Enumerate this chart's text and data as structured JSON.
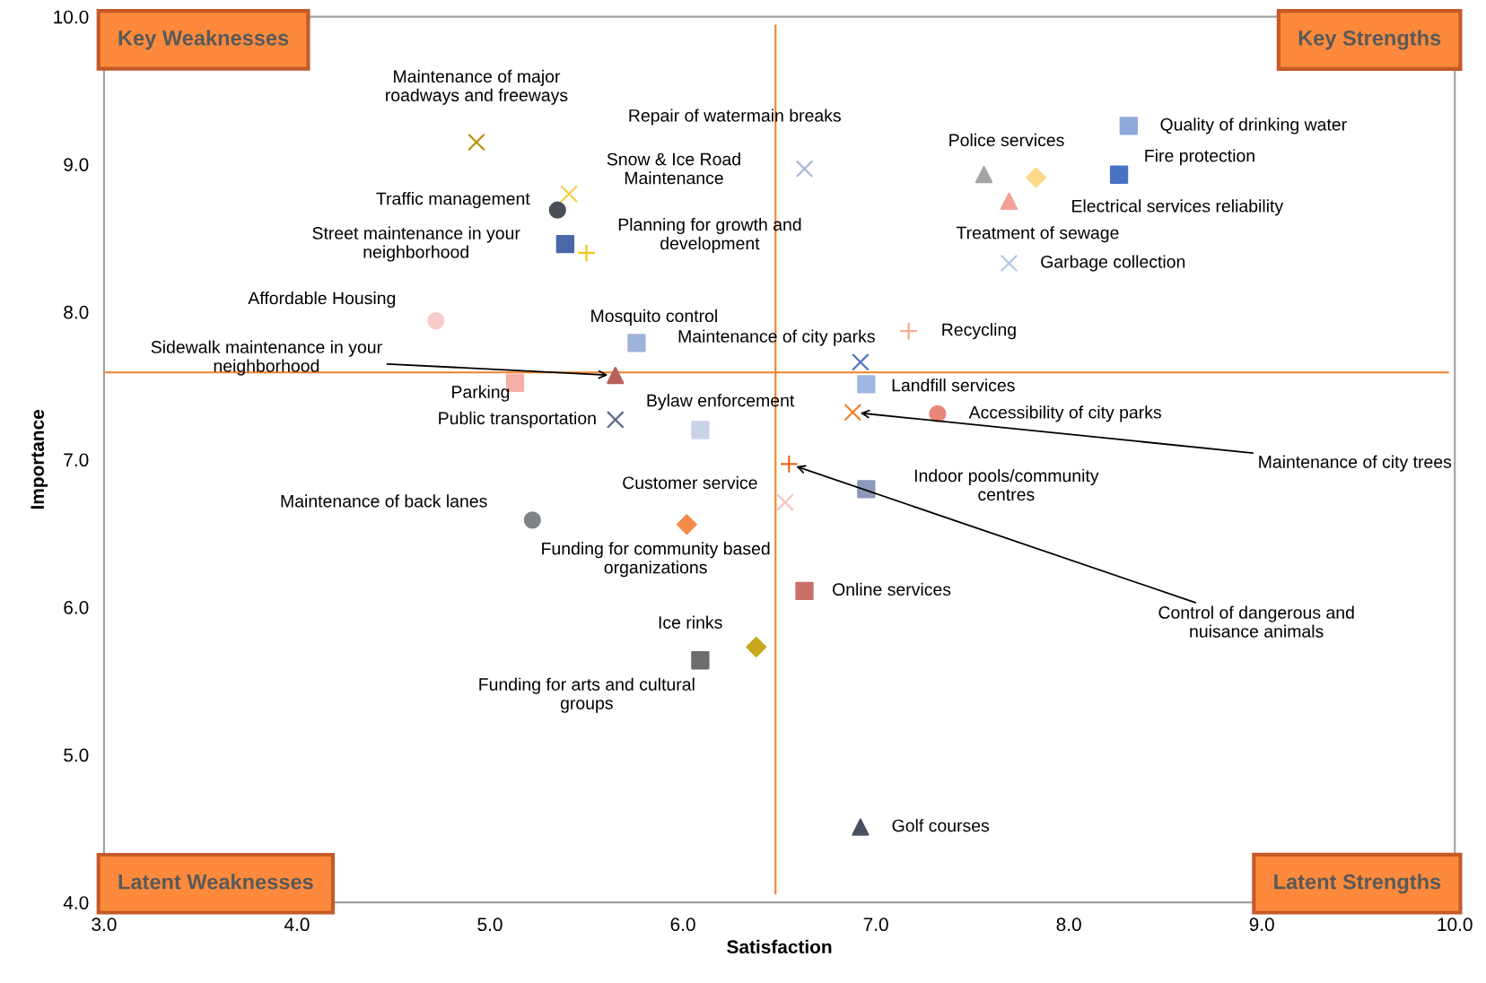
{
  "chart_data": {
    "type": "scatter",
    "xlabel": "Satisfaction",
    "ylabel": "Importance",
    "xlim": [
      3,
      10
    ],
    "ylim": [
      4,
      10
    ],
    "xticks": [
      {
        "value": 3,
        "label": "3.0"
      },
      {
        "value": 4,
        "label": "4.0"
      },
      {
        "value": 5,
        "label": "5.0"
      },
      {
        "value": 6,
        "label": "6.0"
      },
      {
        "value": 7,
        "label": "7.0"
      },
      {
        "value": 8,
        "label": "8.0"
      },
      {
        "value": 9,
        "label": "9.0"
      },
      {
        "value": 10,
        "label": "10.0"
      }
    ],
    "yticks": [
      {
        "value": 4,
        "label": "4.0"
      },
      {
        "value": 5,
        "label": "5.0"
      },
      {
        "value": 6,
        "label": "6.0"
      },
      {
        "value": 7,
        "label": "7.0"
      },
      {
        "value": 8,
        "label": "8.0"
      },
      {
        "value": 9,
        "label": "9.0"
      },
      {
        "value": 10,
        "label": "10.0"
      }
    ],
    "grid": false,
    "legend": false,
    "ref_lines": [
      {
        "axis": "x",
        "value": 6.48,
        "color": "#f07f2a"
      },
      {
        "axis": "y",
        "value": 7.59,
        "color": "#f07f2a"
      }
    ],
    "annotations": [
      "Key Weaknesses",
      "Key Strengths",
      "Latent Weaknesses",
      "Latent Strengths"
    ],
    "series": [
      {
        "name": "Maintenance of major\nroadways and freeways",
        "color": "#b8900a",
        "marker": "cross",
        "x": [
          4.93
        ],
        "values": [
          9.15
        ]
      },
      {
        "name": "Repair of watermain breaks",
        "color": "#a9b9d6",
        "marker": "cross",
        "x": [
          6.63
        ],
        "values": [
          8.97
        ]
      },
      {
        "name": "Snow & Ice Road\nMaintenance",
        "color": "#f5d04a",
        "marker": "cross",
        "x": [
          5.41
        ],
        "values": [
          8.8
        ]
      },
      {
        "name": "Traffic management",
        "color": "#4a4f57",
        "marker": "circle",
        "x": [
          5.35
        ],
        "values": [
          8.69
        ]
      },
      {
        "name": "Street maintenance in your\nneighborhood",
        "color": "#4a68a8",
        "marker": "square",
        "x": [
          5.39
        ],
        "values": [
          8.46
        ]
      },
      {
        "name": "Planning for growth and\ndevelopment",
        "color": "#f5c518",
        "marker": "plus",
        "x": [
          5.5
        ],
        "values": [
          8.4
        ]
      },
      {
        "name": "Quality of drinking water",
        "color": "#8ea9db",
        "marker": "square",
        "x": [
          8.31
        ],
        "values": [
          9.26
        ]
      },
      {
        "name": "Police services",
        "color": "#a5a5a5",
        "marker": "triangle",
        "x": [
          7.56
        ],
        "values": [
          8.93
        ]
      },
      {
        "name": "Electrical services reliability",
        "color": "#fcd98b",
        "marker": "diamond",
        "x": [
          7.83
        ],
        "values": [
          8.91
        ]
      },
      {
        "name": "Fire protection",
        "color": "#4a72c4",
        "marker": "square",
        "x": [
          8.26
        ],
        "values": [
          8.93
        ]
      },
      {
        "name": "Treatment of sewage",
        "color": "#f4a09a",
        "marker": "triangle",
        "x": [
          7.69
        ],
        "values": [
          8.75
        ]
      },
      {
        "name": "Garbage collection",
        "color": "#b4c7e7",
        "marker": "cross",
        "x": [
          7.69
        ],
        "values": [
          8.33
        ]
      },
      {
        "name": "Affordable Housing",
        "color": "#f8cbcb",
        "marker": "circle",
        "x": [
          4.72
        ],
        "values": [
          7.94
        ]
      },
      {
        "name": "Mosquito control",
        "color": "#9fb3d8",
        "marker": "square",
        "x": [
          5.76
        ],
        "values": [
          7.79
        ]
      },
      {
        "name": "Maintenance of city parks",
        "color": "#4a72c4",
        "marker": "cross",
        "x": [
          6.92
        ],
        "values": [
          7.66
        ]
      },
      {
        "name": "Recycling",
        "color": "#f8a98a",
        "marker": "plus",
        "x": [
          7.17
        ],
        "values": [
          7.87
        ]
      },
      {
        "name": "Landfill services",
        "color": "#9fb7e3",
        "marker": "square",
        "x": [
          6.95
        ],
        "values": [
          7.51
        ]
      },
      {
        "name": "Sidewalk maintenance in your\nneighborhood",
        "color": "#b8625a",
        "marker": "triangle",
        "x": [
          5.65
        ],
        "values": [
          7.57
        ]
      },
      {
        "name": "Parking",
        "color": "#f4b0a8",
        "marker": "square",
        "x": [
          5.13
        ],
        "values": [
          7.52
        ]
      },
      {
        "name": "Public transportation",
        "color": "#5a6788",
        "marker": "cross",
        "x": [
          5.65
        ],
        "values": [
          7.27
        ]
      },
      {
        "name": "Bylaw enforcement",
        "color": "#c9d3e8",
        "marker": "square",
        "x": [
          6.09
        ],
        "values": [
          7.2
        ]
      },
      {
        "name": "Accessibility of city parks",
        "color": "#e8877a",
        "marker": "circle",
        "x": [
          7.32
        ],
        "values": [
          7.31
        ]
      },
      {
        "name": "Maintenance of city trees",
        "color": "#f07f2a",
        "marker": "cross",
        "x": [
          6.88
        ],
        "values": [
          7.32
        ]
      },
      {
        "name": "Control of dangerous and\nnuisance animals",
        "color": "#e86a1a",
        "marker": "plus",
        "x": [
          6.55
        ],
        "values": [
          6.97
        ]
      },
      {
        "name": "Indoor pools/community\ncentres",
        "color": "#8c99b8",
        "marker": "square",
        "x": [
          6.95
        ],
        "values": [
          6.8
        ]
      },
      {
        "name": "Customer service",
        "color": "#f8c4bc",
        "marker": "cross",
        "x": [
          6.53
        ],
        "values": [
          6.71
        ]
      },
      {
        "name": "Maintenance of back lanes",
        "color": "#808488",
        "marker": "circle",
        "x": [
          5.22
        ],
        "values": [
          6.59
        ]
      },
      {
        "name": "Funding for community based\norganizations",
        "color": "#f58a4a",
        "marker": "diamond",
        "x": [
          6.02
        ],
        "values": [
          6.56
        ]
      },
      {
        "name": "Online services",
        "color": "#c87068",
        "marker": "square",
        "x": [
          6.63
        ],
        "values": [
          6.11
        ]
      },
      {
        "name": "Ice rinks",
        "color": "#c9a820",
        "marker": "diamond",
        "x": [
          6.38
        ],
        "values": [
          5.73
        ]
      },
      {
        "name": "Funding for arts and cultural\ngroups",
        "color": "#6c6c6c",
        "marker": "square",
        "x": [
          6.09
        ],
        "values": [
          5.64
        ]
      },
      {
        "name": "Golf courses",
        "color": "#4a5060",
        "marker": "triangle",
        "x": [
          6.92
        ],
        "values": [
          4.51
        ]
      }
    ]
  }
}
